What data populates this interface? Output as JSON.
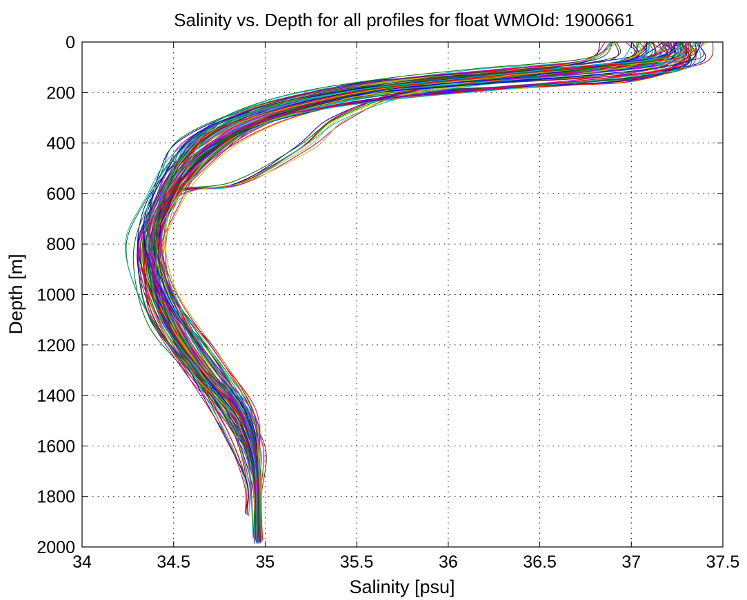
{
  "chart_data": {
    "type": "line",
    "title": "Salinity vs. Depth for all profiles for float WMOId: 1900661",
    "xlabel": "Salinity [psu]",
    "ylabel": "Depth [m]",
    "xlim": [
      34,
      37.5
    ],
    "ylim": [
      0,
      2000
    ],
    "y_reversed": true,
    "grid": true,
    "x_ticks": [
      "34",
      "34.5",
      "35",
      "35.5",
      "36",
      "36.5",
      "37",
      "37.5"
    ],
    "y_ticks": [
      "0",
      "200",
      "400",
      "600",
      "800",
      "1000",
      "1200",
      "1400",
      "1600",
      "1800",
      "2000"
    ],
    "series_colors": [
      "#0000ff",
      "#ff0000",
      "#008000",
      "#00bfbf",
      "#bf00bf",
      "#bfbf00",
      "#404040"
    ],
    "series": [
      {
        "color": "#0000ff",
        "x": [
          37.3,
          37.25,
          36.9,
          36.1,
          35.6,
          35.0,
          34.6,
          34.48,
          34.4,
          34.4,
          34.55,
          34.8,
          34.93,
          34.96,
          34.96
        ],
        "y": [
          0,
          70,
          100,
          130,
          160,
          250,
          380,
          520,
          700,
          900,
          1150,
          1400,
          1600,
          1800,
          1980
        ]
      },
      {
        "color": "#ff0000",
        "x": [
          37.3,
          37.25,
          37.0,
          36.6,
          35.9,
          35.3,
          34.9,
          34.6,
          34.45,
          34.38,
          34.45,
          34.65,
          34.82,
          34.93,
          34.96,
          34.96
        ],
        "y": [
          0,
          90,
          150,
          170,
          200,
          260,
          360,
          520,
          680,
          850,
          1050,
          1300,
          1500,
          1650,
          1800,
          1970
        ]
      },
      {
        "color": "#008000",
        "x": [
          37.2,
          37.1,
          36.6,
          35.9,
          35.3,
          34.85,
          34.55,
          34.4,
          34.33,
          34.42,
          34.62,
          34.85,
          34.95,
          34.96
        ],
        "y": [
          0,
          60,
          110,
          160,
          220,
          320,
          470,
          650,
          850,
          1100,
          1300,
          1500,
          1700,
          1960
        ]
      },
      {
        "color": "#00bfbf",
        "x": [
          37.1,
          37.0,
          36.4,
          35.6,
          35.1,
          34.72,
          34.5,
          34.4,
          34.42,
          34.6,
          34.86,
          34.95,
          34.96
        ],
        "y": [
          0,
          80,
          120,
          180,
          260,
          370,
          550,
          760,
          980,
          1250,
          1480,
          1700,
          1980
        ]
      },
      {
        "color": "#bf00bf",
        "x": [
          37.25,
          37.15,
          36.7,
          36.0,
          35.4,
          34.95,
          34.62,
          34.45,
          34.36,
          34.44,
          34.66,
          34.88,
          34.95,
          34.96
        ],
        "y": [
          0,
          75,
          120,
          165,
          230,
          330,
          480,
          660,
          860,
          1090,
          1330,
          1530,
          1720,
          1970
        ]
      },
      {
        "color": "#bfbf00",
        "x": [
          37.05,
          36.95,
          36.5,
          35.8,
          35.4,
          35.2,
          34.85,
          34.5,
          34.38,
          34.42,
          34.63,
          34.87,
          34.94,
          34.95
        ],
        "y": [
          0,
          85,
          140,
          200,
          300,
          420,
          560,
          600,
          780,
          1000,
          1280,
          1500,
          1700,
          1960
        ]
      },
      {
        "color": "#404040",
        "x": [
          36.9,
          36.8,
          36.3,
          35.7,
          35.2,
          34.8,
          34.55,
          34.42,
          34.31,
          34.38,
          34.58,
          34.82,
          34.92,
          34.95
        ],
        "y": [
          0,
          70,
          110,
          150,
          210,
          300,
          450,
          620,
          800,
          1000,
          1250,
          1450,
          1650,
          1960
        ]
      },
      {
        "color": "#0000ff",
        "x": [
          37.35,
          37.3,
          36.8,
          36.0,
          35.5,
          35.1,
          34.75,
          34.5,
          34.4,
          34.45,
          34.7,
          34.9,
          34.96,
          34.97
        ],
        "y": [
          0,
          80,
          130,
          170,
          210,
          280,
          390,
          560,
          760,
          1000,
          1230,
          1450,
          1650,
          1980
        ]
      },
      {
        "color": "#ff0000",
        "x": [
          37.2,
          37.15,
          36.5,
          35.8,
          35.3,
          34.95,
          34.68,
          34.47,
          34.39,
          34.43,
          34.6,
          34.8,
          34.9,
          34.9
        ],
        "y": [
          0,
          65,
          120,
          170,
          240,
          330,
          470,
          650,
          850,
          1070,
          1300,
          1550,
          1750,
          1870
        ]
      },
      {
        "color": "#008000",
        "x": [
          37.1,
          37.05,
          36.4,
          35.7,
          35.25,
          34.9,
          34.6,
          34.44,
          34.37,
          34.42,
          34.64,
          34.87,
          34.95,
          34.96
        ],
        "y": [
          0,
          70,
          130,
          180,
          250,
          340,
          480,
          660,
          860,
          1080,
          1320,
          1520,
          1720,
          1970
        ]
      },
      {
        "color": "#00bfbf",
        "x": [
          37.25,
          37.2,
          36.7,
          36.1,
          35.5,
          35.0,
          34.66,
          34.48,
          34.4,
          34.47,
          34.72,
          34.9,
          34.96,
          34.97
        ],
        "y": [
          0,
          60,
          100,
          140,
          190,
          270,
          370,
          540,
          740,
          980,
          1240,
          1460,
          1680,
          1980
        ]
      },
      {
        "color": "#bf00bf",
        "x": [
          37.3,
          37.25,
          36.9,
          36.3,
          35.6,
          35.05,
          34.7,
          34.49,
          34.38,
          34.44,
          34.67,
          34.88,
          34.95,
          34.96
        ],
        "y": [
          0,
          90,
          140,
          180,
          230,
          300,
          410,
          580,
          780,
          1010,
          1270,
          1480,
          1690,
          1970
        ]
      }
    ],
    "note_shown": "many overlapping profile lines"
  }
}
